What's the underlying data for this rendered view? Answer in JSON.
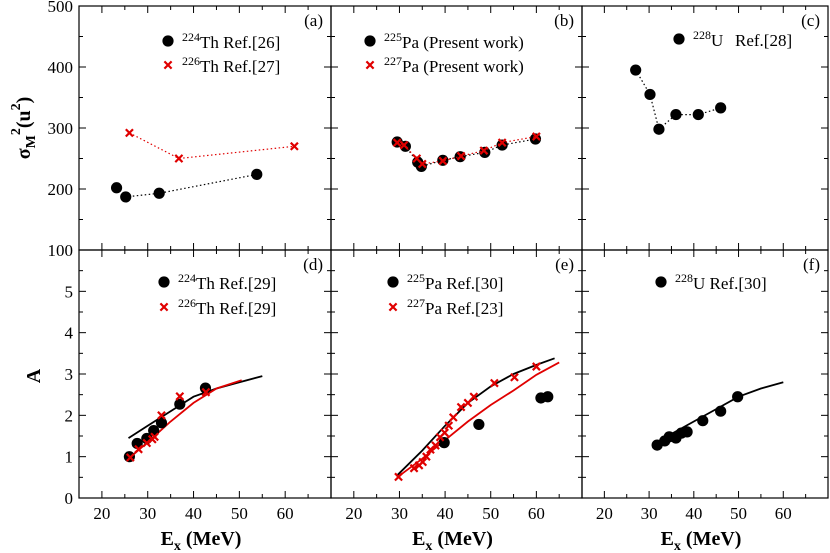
{
  "chart_data": {
    "type": "scatter",
    "x_axis": {
      "label": "E",
      "subscript": "x",
      "unit": " (MeV)",
      "range": [
        15,
        70
      ],
      "ticks": [
        20,
        30,
        40,
        50,
        60
      ]
    },
    "y_axis_top": {
      "label_main": "σ",
      "label_sub": "M",
      "label_sup": "2",
      "label_rest": "(u",
      "label_sup2": "2",
      "label_close": ")",
      "range": [
        100,
        500
      ],
      "ticks": [
        100,
        200,
        300,
        400,
        500
      ]
    },
    "y_axis_bottom": {
      "label": "A",
      "range": [
        0,
        6
      ],
      "ticks": [
        0,
        1,
        2,
        3,
        4,
        5
      ]
    },
    "colors": {
      "black": "#000000",
      "red": "#e00000"
    },
    "panels": [
      {
        "id": "a",
        "tag": "(a)",
        "row": 0,
        "col": 0,
        "series": [
          {
            "name": "224Th Ref.[26]",
            "mass": "224",
            "label": "Th Ref.[26]",
            "marker": "circle",
            "color": "#000000",
            "line": "dotted",
            "x": [
              23.2,
              25.2,
              32.5,
              53.8
            ],
            "y": [
              202,
              187,
              193,
              224
            ]
          },
          {
            "name": "226Th Ref.[27]",
            "mass": "226",
            "label": "Th Ref.[27]",
            "marker": "cross",
            "color": "#e00000",
            "line": "dotted",
            "x": [
              26.0,
              36.8,
              62.0
            ],
            "y": [
              292,
              250,
              270
            ]
          }
        ]
      },
      {
        "id": "b",
        "tag": "(b)",
        "row": 0,
        "col": 1,
        "series": [
          {
            "name": "225Pa (Present work)",
            "mass": "225",
            "label": "Pa (Present work)",
            "marker": "circle",
            "color": "#000000",
            "line": "dotted",
            "x": [
              29.5,
              31.3,
              34.0,
              34.8,
              39.5,
              43.3,
              48.7,
              52.5,
              59.8
            ],
            "y": [
              277,
              270,
              244,
              237,
              247,
              253,
              260,
              272,
              282
            ]
          },
          {
            "name": "227Pa (Present work)",
            "mass": "227",
            "label": "Pa (Present work)",
            "marker": "cross",
            "color": "#e00000",
            "line": "dotted",
            "x": [
              29.5,
              31.0,
              33.8,
              35.0,
              39.5,
              43.5,
              48.5,
              52.5,
              60.0
            ],
            "y": [
              276,
              272,
              250,
              241,
              246,
              254,
              263,
              276,
              286
            ]
          }
        ]
      },
      {
        "id": "c",
        "tag": "(c)",
        "row": 0,
        "col": 2,
        "series": [
          {
            "name": "228U Ref.[28]",
            "mass": "228",
            "label": "U",
            "label2": "Ref.[28]",
            "marker": "circle",
            "color": "#000000",
            "line": "dotted",
            "x": [
              27.0,
              30.2,
              32.2,
              36.0,
              41.0,
              46.0
            ],
            "y": [
              395,
              355,
              298,
              322,
              322,
              333
            ]
          }
        ]
      },
      {
        "id": "d",
        "tag": "(d)",
        "row": 1,
        "col": 0,
        "series": [
          {
            "name": "224Th Ref.[29]",
            "mass": "224",
            "label": "Th Ref.[29]",
            "marker": "circle",
            "color": "#000000",
            "x": [
              26.0,
              27.7,
              29.8,
              31.3,
              33.0,
              37.0,
              42.6
            ],
            "y": [
              1.0,
              1.32,
              1.44,
              1.63,
              1.82,
              2.27,
              2.66
            ]
          },
          {
            "name": "226Th Ref.[29]",
            "mass": "226",
            "label": "Th Ref.[29]",
            "marker": "cross",
            "color": "#e00000",
            "x": [
              26.2,
              28.0,
              29.8,
              31.0,
              31.5,
              33.0,
              37.0,
              42.7
            ],
            "y": [
              0.98,
              1.18,
              1.33,
              1.42,
              1.48,
              2.0,
              2.46,
              2.56
            ]
          }
        ],
        "curves": [
          {
            "color": "#000000",
            "x": [
              25.8,
              30.0,
              35.0,
              40.0,
              45.0,
              50.0,
              55.0
            ],
            "y": [
              1.45,
              1.75,
              2.1,
              2.45,
              2.65,
              2.8,
              2.95
            ]
          },
          {
            "color": "#e00000",
            "x": [
              25.8,
              30.0,
              35.0,
              40.0,
              45.0,
              50.5
            ],
            "y": [
              0.95,
              1.35,
              1.85,
              2.3,
              2.65,
              2.85
            ]
          }
        ]
      },
      {
        "id": "e",
        "tag": "(e)",
        "row": 1,
        "col": 1,
        "series": [
          {
            "name": "225Pa Ref.[30]",
            "mass": "225",
            "label": "Pa  Ref.[30]",
            "marker": "circle",
            "color": "#000000",
            "x": [
              39.8,
              47.4,
              61.0,
              62.5
            ],
            "y": [
              1.34,
              1.78,
              2.42,
              2.45
            ]
          },
          {
            "name": "227Pa Ref.[23]",
            "mass": "227",
            "label": "Pa  Ref.[23]",
            "marker": "cross",
            "color": "#e00000",
            "x": [
              29.8,
              33.2,
              34.3,
              35.1,
              35.9,
              36.8,
              37.9,
              38.9,
              39.9,
              40.8,
              41.8,
              43.5,
              45.0,
              46.3,
              50.8,
              55.2,
              60.0
            ],
            "y": [
              0.51,
              0.72,
              0.79,
              0.87,
              1.0,
              1.17,
              1.27,
              1.47,
              1.58,
              1.75,
              1.95,
              2.2,
              2.3,
              2.45,
              2.78,
              2.92,
              3.18
            ]
          }
        ],
        "curves": [
          {
            "color": "#000000",
            "x": [
              29.5,
              35.0,
              40.0,
              45.0,
              50.0,
              55.0,
              60.0,
              64.0
            ],
            "y": [
              0.55,
              1.15,
              1.75,
              2.3,
              2.7,
              3.0,
              3.22,
              3.38
            ]
          },
          {
            "color": "#e00000",
            "x": [
              29.5,
              35.0,
              40.0,
              45.0,
              50.0,
              55.0,
              60.0,
              65.0
            ],
            "y": [
              0.5,
              0.95,
              1.4,
              1.85,
              2.25,
              2.6,
              2.98,
              3.28
            ]
          }
        ]
      },
      {
        "id": "f",
        "tag": "(f)",
        "row": 1,
        "col": 2,
        "series": [
          {
            "name": "228U Ref.[30]",
            "mass": "228",
            "label": "U Ref.[30]",
            "marker": "circle",
            "color": "#000000",
            "x": [
              31.8,
              33.5,
              34.5,
              36.0,
              37.2,
              38.5,
              42.0,
              46.0,
              49.8
            ],
            "y": [
              1.28,
              1.38,
              1.48,
              1.45,
              1.57,
              1.6,
              1.87,
              2.1,
              2.45
            ]
          }
        ],
        "curves": [
          {
            "color": "#000000",
            "x": [
              31.0,
              35.0,
              40.0,
              45.0,
              50.0,
              55.0,
              60.0
            ],
            "y": [
              1.3,
              1.55,
              1.85,
              2.15,
              2.45,
              2.65,
              2.8
            ]
          }
        ]
      }
    ]
  }
}
